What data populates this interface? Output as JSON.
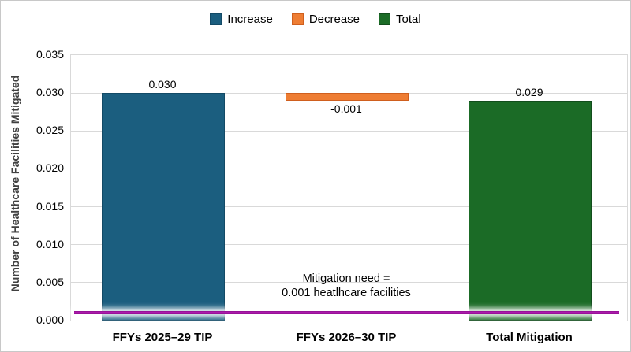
{
  "chart_data": {
    "type": "bar",
    "subtype": "waterfall",
    "title": "",
    "categories": [
      "FFYs 2025–29 TIP",
      "FFYs 2026–30 TIP",
      "Total Mitigation"
    ],
    "bars": [
      {
        "category": "FFYs 2025–29 TIP",
        "role": "increase",
        "start": 0.0,
        "end": 0.03,
        "value": 0.03,
        "label": "0.030",
        "label_position": "above"
      },
      {
        "category": "FFYs 2026–30 TIP",
        "role": "decrease",
        "start": 0.029,
        "end": 0.03,
        "value": -0.001,
        "label": "-0.001",
        "label_position": "below"
      },
      {
        "category": "Total Mitigation",
        "role": "total",
        "start": 0.0,
        "end": 0.029,
        "value": 0.029,
        "label": "0.029",
        "label_position": "above"
      }
    ],
    "xlabel": "",
    "ylabel": "Number of Healthcare Facilities Mitigated",
    "ylim": [
      0,
      0.035
    ],
    "ytick_step": 0.005,
    "yticks": [
      {
        "value": 0.0,
        "label": "0.000"
      },
      {
        "value": 0.005,
        "label": "0.005"
      },
      {
        "value": 0.01,
        "label": "0.010"
      },
      {
        "value": 0.015,
        "label": "0.015"
      },
      {
        "value": 0.02,
        "label": "0.020"
      },
      {
        "value": 0.025,
        "label": "0.025"
      },
      {
        "value": 0.03,
        "label": "0.030"
      },
      {
        "value": 0.035,
        "label": "0.035"
      }
    ],
    "grid": "horizontal",
    "legend": {
      "position": "top",
      "items": [
        {
          "label": "Increase",
          "role": "increase"
        },
        {
          "label": "Decrease",
          "role": "decrease"
        },
        {
          "label": "Total",
          "role": "total"
        }
      ]
    },
    "reference_line": {
      "value": 0.001,
      "annotation": [
        "Mitigation need =",
        "0.001 heatlhcare facilities"
      ]
    },
    "colors": {
      "increase": "#1b5e7f",
      "increase_border": "#134a66",
      "decrease": "#ee7d33",
      "decrease_border": "#cf5f1e",
      "total": "#1b6b26",
      "total_border": "#124d1c",
      "gridline": "#d9d9d9",
      "plot_border": "#d9d9d9",
      "reference_line": "#a111a1",
      "reference_line_edge": "#8f0d8f",
      "axis_text": "#000000",
      "ylabel_text": "#404040"
    }
  }
}
